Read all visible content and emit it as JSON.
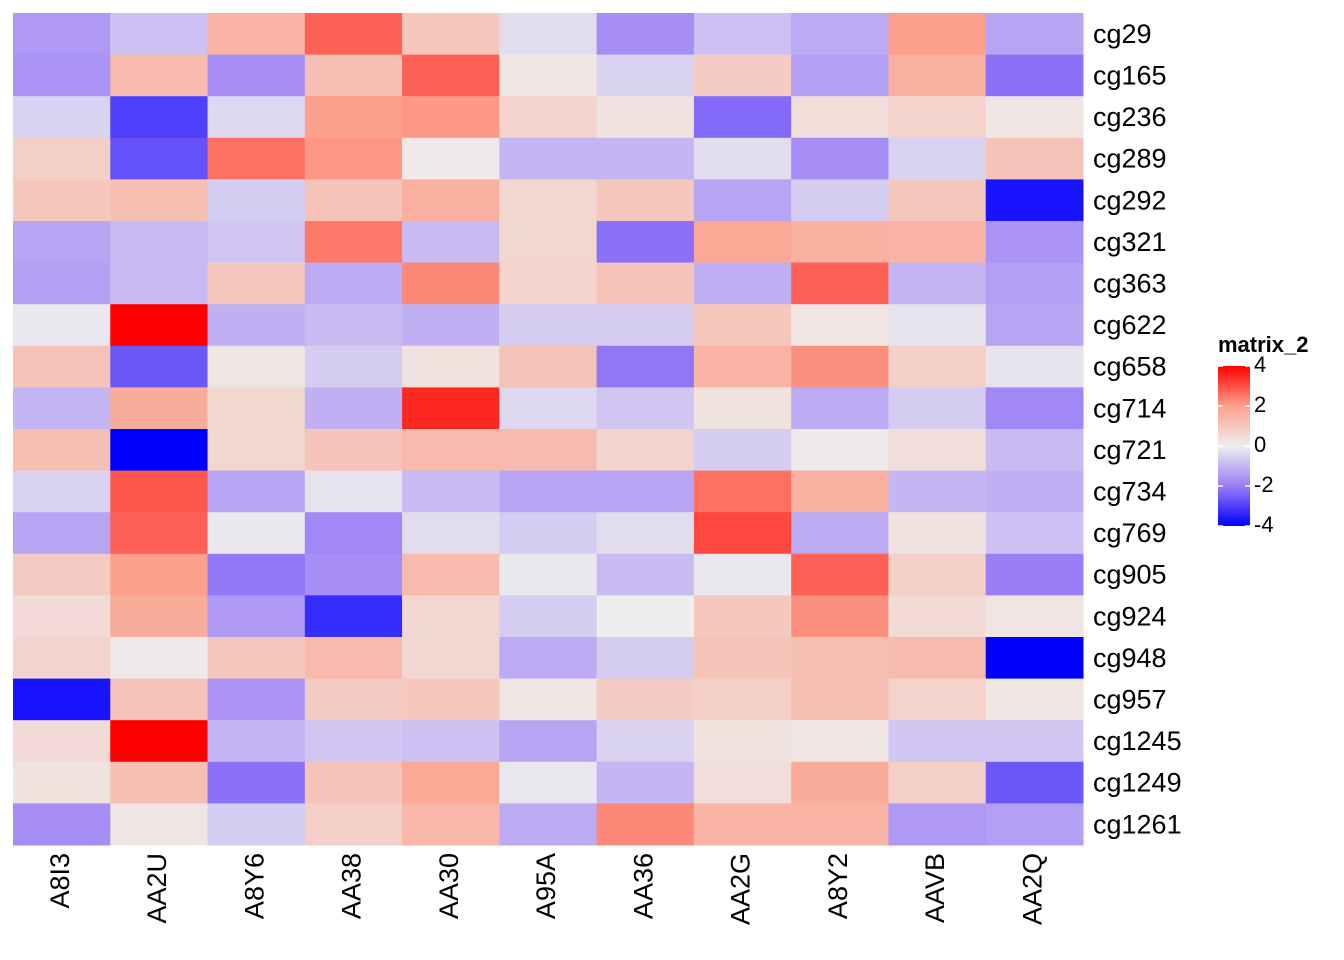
{
  "chart_data": {
    "type": "heatmap",
    "legend_title": "matrix_2",
    "categories": [
      "A8I3",
      "AA2U",
      "A8Y6",
      "AA38",
      "AA30",
      "A95A",
      "AA36",
      "AA2G",
      "A8Y2",
      "AAVB",
      "AA2Q"
    ],
    "rows": [
      "cg29",
      "cg165",
      "cg236",
      "cg289",
      "cg292",
      "cg321",
      "cg363",
      "cg622",
      "cg658",
      "cg714",
      "cg721",
      "cg734",
      "cg769",
      "cg905",
      "cg924",
      "cg948",
      "cg957",
      "cg1245",
      "cg1249",
      "cg1261"
    ],
    "values": [
      [
        -1.5,
        -0.8,
        1.5,
        2.8,
        1.0,
        -0.3,
        -1.7,
        -0.8,
        -1.2,
        2.0,
        -1.3
      ],
      [
        -1.6,
        1.3,
        -1.7,
        1.2,
        2.8,
        0.2,
        -0.5,
        0.9,
        -1.4,
        1.6,
        -2.2
      ],
      [
        -0.5,
        -3.0,
        -0.4,
        2.0,
        2.1,
        0.7,
        0.3,
        -2.3,
        0.4,
        0.7,
        0.2
      ],
      [
        0.8,
        -2.7,
        2.6,
        2.1,
        0.1,
        -1.0,
        -1.0,
        -0.3,
        -1.7,
        -0.5,
        1.1
      ],
      [
        1.0,
        1.2,
        -0.6,
        1.1,
        1.6,
        0.6,
        1.0,
        -1.3,
        -0.6,
        1.0,
        -3.7
      ],
      [
        -1.3,
        -0.9,
        -0.7,
        2.5,
        -0.9,
        0.6,
        -2.2,
        1.8,
        1.6,
        1.5,
        -1.6
      ],
      [
        -1.4,
        -0.9,
        1.0,
        -1.2,
        2.3,
        0.7,
        1.1,
        -1.1,
        2.8,
        -1.0,
        -1.4
      ],
      [
        -0.1,
        4.0,
        -1.1,
        -0.9,
        -1.1,
        -0.6,
        -0.6,
        1.0,
        0.2,
        -0.2,
        -1.3
      ],
      [
        1.1,
        -2.6,
        0.2,
        -0.6,
        0.3,
        1.1,
        -2.1,
        1.5,
        2.2,
        0.8,
        -0.2
      ],
      [
        -1.0,
        1.7,
        0.6,
        -1.1,
        3.5,
        -0.4,
        -0.7,
        0.3,
        -1.2,
        -0.6,
        -1.8
      ],
      [
        1.2,
        -4.0,
        0.6,
        1.1,
        1.3,
        1.3,
        0.7,
        -0.6,
        0.1,
        0.4,
        -0.9
      ],
      [
        -0.5,
        2.9,
        -1.3,
        -0.2,
        -0.9,
        -1.3,
        -1.3,
        2.6,
        1.6,
        -1.0,
        -1.1
      ],
      [
        -1.3,
        2.8,
        -0.1,
        -1.8,
        -0.3,
        -0.6,
        -0.3,
        3.1,
        -1.2,
        0.3,
        -0.8
      ],
      [
        0.9,
        2.0,
        -2.1,
        -1.7,
        1.3,
        -0.1,
        -0.9,
        -0.1,
        2.8,
        0.8,
        -2.0
      ],
      [
        0.5,
        1.7,
        -1.5,
        -3.3,
        0.6,
        -0.6,
        0.0,
        1.0,
        2.2,
        0.5,
        0.2
      ],
      [
        0.7,
        0.1,
        1.0,
        1.3,
        0.6,
        -1.2,
        -0.6,
        1.1,
        1.2,
        1.3,
        -4.0
      ],
      [
        -3.7,
        1.1,
        -1.6,
        0.9,
        1.0,
        0.2,
        0.9,
        0.8,
        1.2,
        0.7,
        0.2
      ],
      [
        0.5,
        4.0,
        -1.0,
        -0.7,
        -0.8,
        -1.3,
        -0.5,
        0.3,
        0.2,
        -0.7,
        -0.7
      ],
      [
        0.3,
        1.2,
        -2.2,
        1.1,
        1.8,
        -0.1,
        -1.0,
        0.4,
        1.7,
        0.8,
        -2.6
      ],
      [
        -1.7,
        0.2,
        -0.6,
        0.8,
        1.4,
        -1.2,
        2.3,
        1.5,
        1.5,
        -1.5,
        -1.4
      ]
    ],
    "legend_ticks": [
      4,
      2,
      0,
      -2,
      -4
    ],
    "legend_colors": [
      "#ff0000",
      "#fca08c",
      "#eeeeee",
      "#9a7df7",
      "#0000ff"
    ]
  }
}
